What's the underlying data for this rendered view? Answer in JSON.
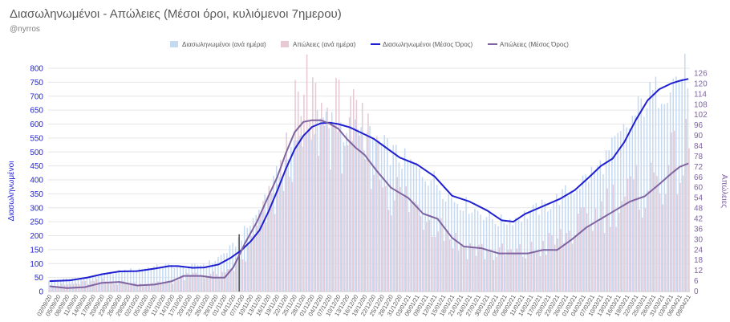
{
  "header": {
    "title": "Διασωληνωμένοι - Απώλειες (Μέσοι όροι, κυλιόμενοι 7ημερου)",
    "subtitle": "@nyrros"
  },
  "chart_data": {
    "type": "bar",
    "title": "Διασωληνωμένοι - Απώλειες (Μέσοι όροι, κυλιόμενοι 7ημερου)",
    "y_left_label": "Διασωληνωμένοι",
    "y_right_label": "Απώλειες",
    "y_left_range": [
      0,
      800
    ],
    "y_left_ticks": [
      0,
      50,
      100,
      150,
      200,
      250,
      300,
      350,
      400,
      450,
      500,
      550,
      600,
      650,
      700,
      750,
      800
    ],
    "y_right_range": [
      0,
      129
    ],
    "y_right_ticks": [
      0,
      6,
      12,
      18,
      24,
      30,
      36,
      42,
      48,
      54,
      60,
      66,
      72,
      78,
      84,
      90,
      96,
      102,
      108,
      114,
      120,
      126
    ],
    "x_date_start": "2020-09-02",
    "x_date_end": "2021-04-09",
    "x_tick_labels": [
      "02/09/20",
      "05/09/20",
      "08/09/20",
      "11/09/20",
      "14/09/20",
      "17/09/20",
      "20/09/20",
      "23/09/20",
      "26/09/20",
      "29/09/20",
      "02/10/20",
      "05/10/20",
      "08/10/20",
      "11/10/20",
      "14/10/20",
      "17/10/20",
      "20/10/20",
      "23/10/20",
      "26/10/20",
      "29/10/20",
      "01/11/20",
      "04/11/20",
      "07/11/20",
      "10/11/20",
      "13/11/20",
      "16/11/20",
      "19/11/20",
      "22/11/20",
      "25/11/20",
      "28/11/20",
      "01/12/20",
      "04/12/20",
      "07/12/20",
      "10/12/20",
      "13/12/20",
      "16/12/20",
      "19/12/20",
      "22/12/20",
      "25/12/20",
      "28/12/20",
      "31/12/20",
      "03/01/21",
      "06/01/21",
      "09/01/21",
      "12/01/21",
      "15/01/21",
      "18/01/21",
      "21/01/21",
      "24/01/21",
      "27/01/21",
      "30/01/21",
      "02/02/21",
      "05/02/21",
      "08/02/21",
      "11/02/21",
      "14/02/21",
      "17/02/21",
      "20/02/21",
      "23/02/21",
      "26/02/21",
      "01/03/21",
      "04/03/21",
      "07/03/21",
      "10/03/21",
      "13/03/21",
      "16/03/21",
      "19/03/21",
      "22/03/21",
      "25/03/21",
      "28/03/21",
      "31/03/21",
      "03/04/21",
      "06/04/21",
      "09/04/21"
    ],
    "legend_position": "top-center",
    "series": [
      {
        "name": "Διασωληνωμένοι (ανά ημέρα)",
        "kind": "bar",
        "axis": "left",
        "color": "#c5d9f1",
        "keypoints": [
          [
            "2020-09-02",
            40
          ],
          [
            "2020-09-15",
            50
          ],
          [
            "2020-09-26",
            72
          ],
          [
            "2020-10-08",
            88
          ],
          [
            "2020-10-13",
            95
          ],
          [
            "2020-10-18",
            85
          ],
          [
            "2020-10-28",
            105
          ],
          [
            "2020-11-04",
            160
          ],
          [
            "2020-11-10",
            240
          ],
          [
            "2020-11-16",
            350
          ],
          [
            "2020-11-22",
            470
          ],
          [
            "2020-11-28",
            560
          ],
          [
            "2020-12-04",
            605
          ],
          [
            "2020-12-10",
            600
          ],
          [
            "2020-12-16",
            570
          ],
          [
            "2020-12-22",
            540
          ],
          [
            "2020-12-31",
            480
          ],
          [
            "2021-01-12",
            400
          ],
          [
            "2021-01-18",
            335
          ],
          [
            "2021-01-27",
            290
          ],
          [
            "2021-02-03",
            250
          ],
          [
            "2021-02-10",
            265
          ],
          [
            "2021-02-20",
            310
          ],
          [
            "2021-03-01",
            370
          ],
          [
            "2021-03-10",
            450
          ],
          [
            "2021-03-19",
            580
          ],
          [
            "2021-03-25",
            680
          ],
          [
            "2021-04-03",
            750
          ],
          [
            "2021-04-09",
            790
          ]
        ]
      },
      {
        "name": "Απώλειες (ανά ημέρα)",
        "kind": "bar",
        "axis": "right",
        "color": "#e6c9d5",
        "keypoints": [
          [
            "2020-09-02",
            3
          ],
          [
            "2020-09-20",
            6
          ],
          [
            "2020-10-05",
            4
          ],
          [
            "2020-10-15",
            6
          ],
          [
            "2020-10-22",
            10
          ],
          [
            "2020-11-01",
            9
          ],
          [
            "2020-11-08",
            20
          ],
          [
            "2020-11-14",
            42
          ],
          [
            "2020-11-20",
            62
          ],
          [
            "2020-11-25",
            95
          ],
          [
            "2020-11-30",
            110
          ],
          [
            "2020-12-03",
            100
          ],
          [
            "2020-12-09",
            98
          ],
          [
            "2020-12-15",
            90
          ],
          [
            "2020-12-21",
            82
          ],
          [
            "2020-12-27",
            60
          ],
          [
            "2021-01-04",
            50
          ],
          [
            "2021-01-12",
            42
          ],
          [
            "2021-01-20",
            27
          ],
          [
            "2021-02-01",
            22
          ],
          [
            "2021-02-12",
            22
          ],
          [
            "2021-02-24",
            30
          ],
          [
            "2021-03-05",
            40
          ],
          [
            "2021-03-14",
            52
          ],
          [
            "2021-03-24",
            58
          ],
          [
            "2021-04-02",
            70
          ],
          [
            "2021-04-09",
            78
          ]
        ]
      },
      {
        "name": "Διασωληνωμένοι (Μέσος Όρος)",
        "kind": "line",
        "axis": "left",
        "color": "#1f1fd1",
        "points": [
          [
            "2020-09-02",
            37
          ],
          [
            "2020-09-09",
            40
          ],
          [
            "2020-09-15",
            50
          ],
          [
            "2020-09-20",
            62
          ],
          [
            "2020-09-26",
            72
          ],
          [
            "2020-10-02",
            73
          ],
          [
            "2020-10-08",
            82
          ],
          [
            "2020-10-13",
            91
          ],
          [
            "2020-10-16",
            91
          ],
          [
            "2020-10-21",
            85
          ],
          [
            "2020-10-25",
            86
          ],
          [
            "2020-10-30",
            97
          ],
          [
            "2020-11-03",
            120
          ],
          [
            "2020-11-07",
            150
          ],
          [
            "2020-11-10",
            180
          ],
          [
            "2020-11-13",
            220
          ],
          [
            "2020-11-16",
            285
          ],
          [
            "2020-11-19",
            360
          ],
          [
            "2020-11-22",
            440
          ],
          [
            "2020-11-25",
            510
          ],
          [
            "2020-11-28",
            558
          ],
          [
            "2020-12-01",
            590
          ],
          [
            "2020-12-04",
            603
          ],
          [
            "2020-12-07",
            605
          ],
          [
            "2020-12-10",
            600
          ],
          [
            "2020-12-14",
            588
          ],
          [
            "2020-12-18",
            568
          ],
          [
            "2020-12-22",
            548
          ],
          [
            "2020-12-26",
            518
          ],
          [
            "2020-12-31",
            480
          ],
          [
            "2021-01-06",
            455
          ],
          [
            "2021-01-12",
            412
          ],
          [
            "2021-01-18",
            343
          ],
          [
            "2021-01-24",
            322
          ],
          [
            "2021-01-30",
            290
          ],
          [
            "2021-02-04",
            255
          ],
          [
            "2021-02-08",
            250
          ],
          [
            "2021-02-12",
            278
          ],
          [
            "2021-02-18",
            305
          ],
          [
            "2021-02-24",
            332
          ],
          [
            "2021-03-01",
            363
          ],
          [
            "2021-03-06",
            410
          ],
          [
            "2021-03-10",
            450
          ],
          [
            "2021-03-14",
            476
          ],
          [
            "2021-03-18",
            535
          ],
          [
            "2021-03-22",
            615
          ],
          [
            "2021-03-26",
            685
          ],
          [
            "2021-03-30",
            725
          ],
          [
            "2021-04-03",
            745
          ],
          [
            "2021-04-06",
            755
          ],
          [
            "2021-04-09",
            762
          ]
        ]
      },
      {
        "name": "Απώλειες (Μέσος Όρος)",
        "kind": "line",
        "axis": "right",
        "color": "#8064a2",
        "points": [
          [
            "2020-09-02",
            3
          ],
          [
            "2020-09-08",
            2
          ],
          [
            "2020-09-14",
            2.5
          ],
          [
            "2020-09-20",
            5
          ],
          [
            "2020-09-26",
            5.5
          ],
          [
            "2020-10-02",
            3.5
          ],
          [
            "2020-10-08",
            4
          ],
          [
            "2020-10-14",
            6
          ],
          [
            "2020-10-18",
            9
          ],
          [
            "2020-10-24",
            9
          ],
          [
            "2020-10-28",
            8
          ],
          [
            "2020-11-01",
            8
          ],
          [
            "2020-11-04",
            14
          ],
          [
            "2020-11-08",
            28
          ],
          [
            "2020-11-12",
            40
          ],
          [
            "2020-11-16",
            55
          ],
          [
            "2020-11-19",
            66
          ],
          [
            "2020-11-22",
            80
          ],
          [
            "2020-11-25",
            92
          ],
          [
            "2020-11-28",
            98
          ],
          [
            "2020-12-01",
            99
          ],
          [
            "2020-12-04",
            99
          ],
          [
            "2020-12-07",
            97
          ],
          [
            "2020-12-10",
            94
          ],
          [
            "2020-12-13",
            88
          ],
          [
            "2020-12-16",
            83
          ],
          [
            "2020-12-19",
            79
          ],
          [
            "2020-12-23",
            70
          ],
          [
            "2020-12-28",
            60
          ],
          [
            "2021-01-03",
            54
          ],
          [
            "2021-01-08",
            45
          ],
          [
            "2021-01-13",
            42
          ],
          [
            "2021-01-18",
            31
          ],
          [
            "2021-01-22",
            26
          ],
          [
            "2021-01-28",
            25
          ],
          [
            "2021-02-03",
            22
          ],
          [
            "2021-02-08",
            22
          ],
          [
            "2021-02-13",
            22
          ],
          [
            "2021-02-18",
            24
          ],
          [
            "2021-02-23",
            24
          ],
          [
            "2021-02-28",
            30
          ],
          [
            "2021-03-05",
            37
          ],
          [
            "2021-03-10",
            42
          ],
          [
            "2021-03-15",
            47
          ],
          [
            "2021-03-20",
            52
          ],
          [
            "2021-03-25",
            55
          ],
          [
            "2021-03-30",
            62
          ],
          [
            "2021-04-03",
            68
          ],
          [
            "2021-04-06",
            72
          ],
          [
            "2021-04-09",
            74
          ]
        ]
      }
    ]
  }
}
